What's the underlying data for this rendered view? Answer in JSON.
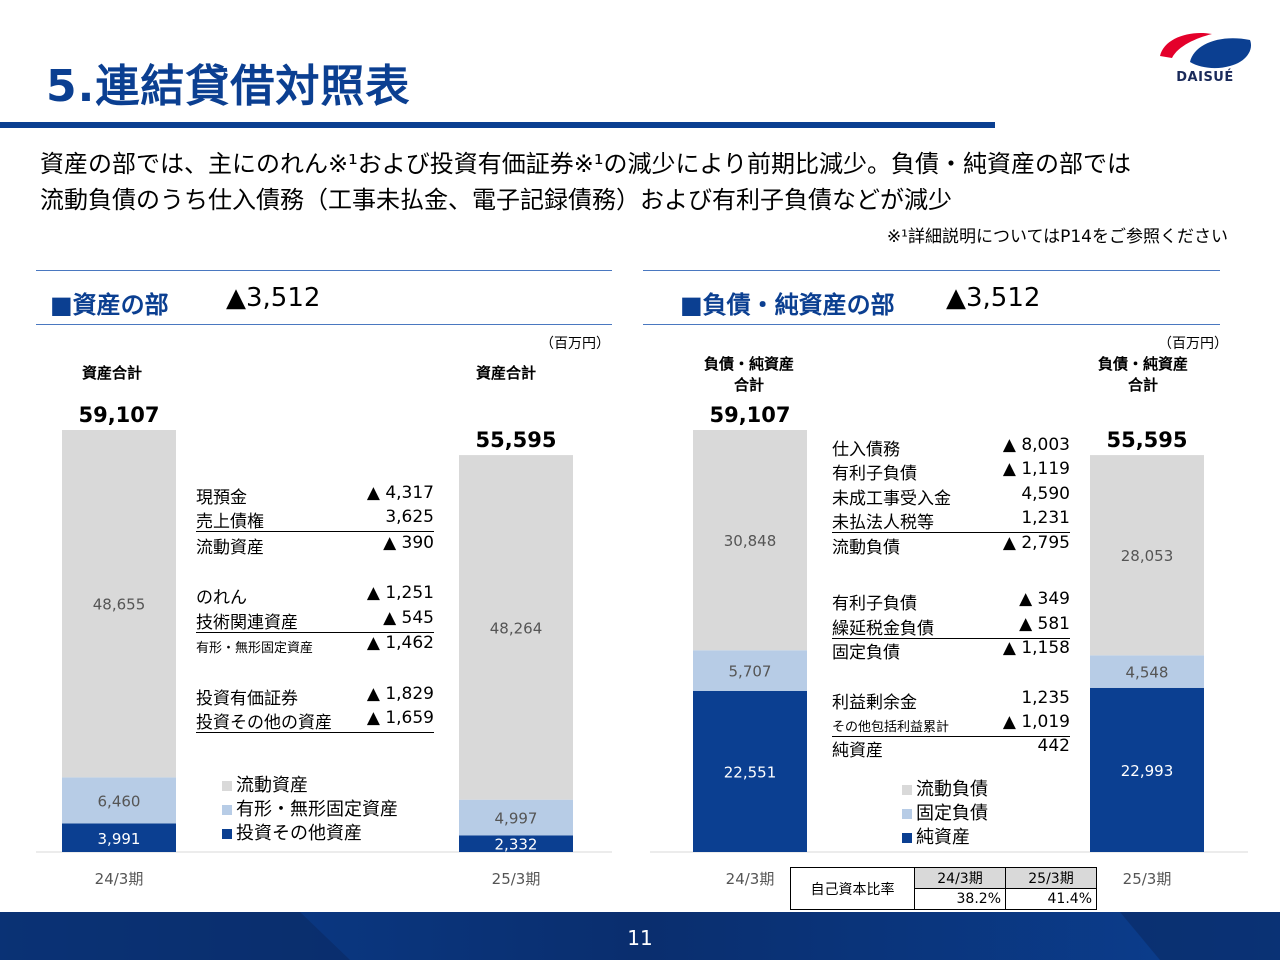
{
  "header": {
    "title": "5.連結貸借対照表",
    "logo_text": "DAISUÉ",
    "summary_line1": "資産の部では、主にのれん※¹および投資有価証券※¹の減少により前期比減少。負債・純資産の部では",
    "summary_line2": "流動負債のうち仕入債務（工事未払金、電子記録債務）および有利子負債などが減少",
    "footnote": "※¹詳細説明についてはP14をご参照ください"
  },
  "assets": {
    "section_title": "■資産の部",
    "delta": "▲3,512",
    "unit": "（百万円）",
    "total_label_prev": "資産合計",
    "total_label_curr": "資産合計",
    "breakdown": [
      {
        "label": "現預金",
        "value": "▲ 4,317"
      },
      {
        "label": "売上債権",
        "value": "3,625"
      },
      {
        "label": "流動資産",
        "value": "▲ 390"
      },
      {
        "label": "のれん",
        "value": "▲ 1,251"
      },
      {
        "label": "技術関連資産",
        "value": "▲ 545"
      },
      {
        "label": "有形・無形固定資産",
        "value": "▲ 1,462"
      },
      {
        "label": "投資有価証券",
        "value": "▲ 1,829"
      },
      {
        "label": "投資その他の資産",
        "value": "▲ 1,659"
      }
    ],
    "legend": [
      "■流動資産",
      "■有形・無形固定資産",
      "■投資その他資産"
    ]
  },
  "liabilities": {
    "section_title": "■負債・純資産の部",
    "delta": "▲3,512",
    "unit": "（百万円）",
    "total_label_prev_1": "負債・純資産",
    "total_label_prev_2": "合計",
    "total_label_curr_1": "負債・純資産",
    "total_label_curr_2": "合計",
    "breakdown": [
      {
        "label": "仕入債務",
        "value": "▲ 8,003"
      },
      {
        "label": "有利子負債",
        "value": "▲ 1,119"
      },
      {
        "label": "未成工事受入金",
        "value": "4,590"
      },
      {
        "label": "未払法人税等",
        "value": "1,231"
      },
      {
        "label": "流動負債",
        "value": "▲ 2,795"
      },
      {
        "label": "有利子負債",
        "value": "▲ 349"
      },
      {
        "label": "繰延税金負債",
        "value": "▲ 581"
      },
      {
        "label": "固定負債",
        "value": "▲ 1,158"
      },
      {
        "label": "利益剰余金",
        "value": "1,235"
      },
      {
        "label": "その他包括利益累計",
        "value": "▲ 1,019"
      },
      {
        "label": "純資産",
        "value": "442"
      }
    ],
    "legend": [
      "■流動負債",
      "■固定負債",
      "■純資産"
    ],
    "ratio_table": {
      "row_label": "自己資本比率",
      "headers": [
        "24/3期",
        "25/3期"
      ],
      "values": [
        "38.2%",
        "41.4%"
      ]
    }
  },
  "chart_data": [
    {
      "type": "bar",
      "stacked": true,
      "categories": [
        "24/3期",
        "25/3期"
      ],
      "series": [
        {
          "name": "投資その他資産",
          "values": [
            3991,
            2332
          ],
          "color": "#0b3f91"
        },
        {
          "name": "有形・無形固定資産",
          "values": [
            6460,
            4997
          ],
          "color": "#b7cce6"
        },
        {
          "name": "流動資産",
          "values": [
            48655,
            48264
          ],
          "color": "#d9d9d9"
        }
      ],
      "totals": [
        59107,
        55595
      ],
      "total_labels": [
        "59,107",
        "55,595"
      ],
      "data_labels": [
        [
          "3,991",
          "2,332"
        ],
        [
          "6,460",
          "4,997"
        ],
        [
          "48,655",
          "48,264"
        ]
      ]
    },
    {
      "type": "bar",
      "stacked": true,
      "categories": [
        "24/3期",
        "25/3期"
      ],
      "series": [
        {
          "name": "純資産",
          "values": [
            22551,
            22993
          ],
          "color": "#0b3f91"
        },
        {
          "name": "固定負債",
          "values": [
            5707,
            4548
          ],
          "color": "#b7cce6"
        },
        {
          "name": "流動負債",
          "values": [
            30848,
            28053
          ],
          "color": "#d9d9d9"
        }
      ],
      "totals": [
        59107,
        55595
      ],
      "total_labels": [
        "59,107",
        "55,595"
      ],
      "data_labels": [
        [
          "22,551",
          "22,993"
        ],
        [
          "5,707",
          "4,548"
        ],
        [
          "30,848",
          "28,053"
        ]
      ]
    }
  ],
  "footer": {
    "page_number": "11",
    "bar_color": "#0b3f91"
  }
}
